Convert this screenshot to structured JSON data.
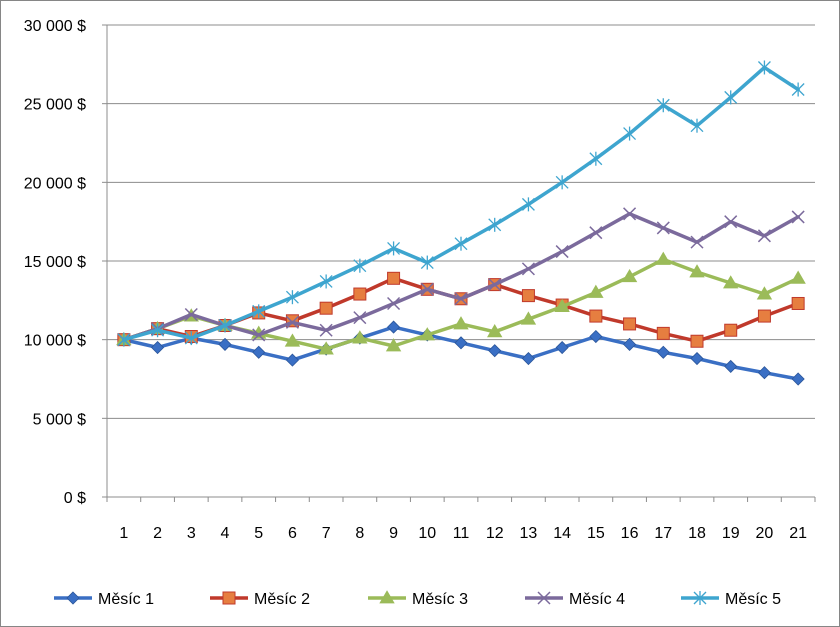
{
  "chart_data": {
    "type": "line",
    "title": "",
    "xlabel": "",
    "ylabel": "",
    "categories": [
      "1",
      "2",
      "3",
      "4",
      "5",
      "6",
      "7",
      "8",
      "9",
      "10",
      "11",
      "12",
      "13",
      "14",
      "15",
      "16",
      "17",
      "18",
      "19",
      "20",
      "21"
    ],
    "y_tick_labels": [
      "0 $",
      "5 000 $",
      "10 000 $",
      "15 000 $",
      "20 000 $",
      "25 000 $",
      "30 000 $"
    ],
    "y_ticks": [
      0,
      5000,
      10000,
      15000,
      20000,
      25000,
      30000
    ],
    "ylim": [
      0,
      30000
    ],
    "grid": "horizontal",
    "legend": "bottom",
    "series": [
      {
        "name": "Měsíc 1",
        "color": "#3A6FC4",
        "marker": "diamond",
        "values": [
          10000,
          9500,
          10100,
          9700,
          9200,
          8700,
          9400,
          10100,
          10800,
          10300,
          9800,
          9300,
          8800,
          9500,
          10200,
          9700,
          9200,
          8800,
          8300,
          7900,
          7500
        ]
      },
      {
        "name": "Měsíc 2",
        "color": "#C0392B",
        "fill": "#E67E40",
        "marker": "square",
        "values": [
          10000,
          10700,
          10200,
          10900,
          11700,
          11200,
          12000,
          12900,
          13900,
          13200,
          12600,
          13500,
          12800,
          12200,
          11500,
          11000,
          10400,
          9900,
          10600,
          11500,
          12300
        ]
      },
      {
        "name": "Měsíc 3",
        "color": "#9BBB59",
        "marker": "triangle",
        "values": [
          10000,
          10700,
          11500,
          10900,
          10400,
          9900,
          9400,
          10100,
          9600,
          10300,
          11000,
          10500,
          11300,
          12100,
          13000,
          14000,
          15100,
          14300,
          13600,
          12900,
          13900
        ]
      },
      {
        "name": "Měsíc 4",
        "color": "#7B6A9C",
        "marker": "x",
        "values": [
          10000,
          10700,
          11600,
          10900,
          10300,
          11100,
          10600,
          11400,
          12300,
          13200,
          12600,
          13500,
          14500,
          15600,
          16800,
          18000,
          17100,
          16200,
          17500,
          16600,
          17800
        ]
      },
      {
        "name": "Měsíc 5",
        "color": "#3EA5CF",
        "marker": "star",
        "values": [
          10000,
          10600,
          10100,
          10900,
          11800,
          12700,
          13700,
          14700,
          15800,
          14900,
          16100,
          17300,
          18600,
          20000,
          21500,
          23100,
          24900,
          23600,
          25400,
          27300,
          25900
        ]
      }
    ]
  }
}
